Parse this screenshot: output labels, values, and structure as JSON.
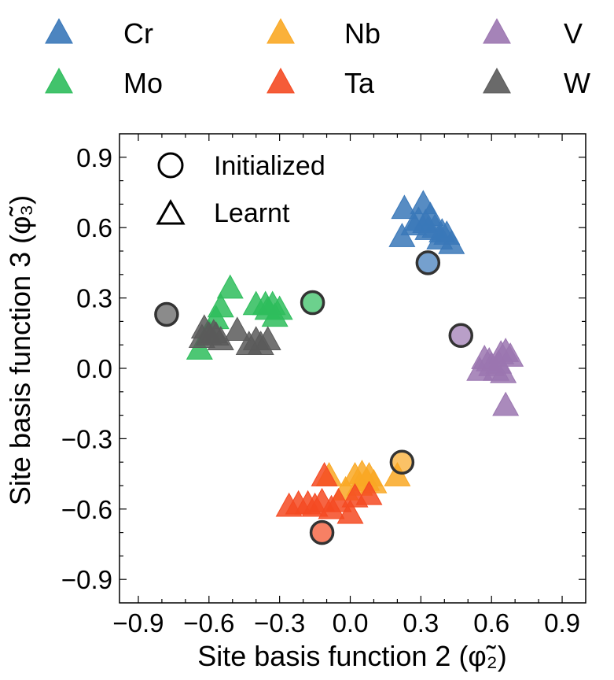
{
  "chart_data": {
    "type": "scatter",
    "xlabel": "Site basis function 2",
    "xlabel_symbol": "(φ̃₂)",
    "ylabel": "Site basis function 3",
    "ylabel_symbol": "(φ̃₃)",
    "xlim": [
      -0.98,
      1.0
    ],
    "ylim": [
      -1.0,
      1.0
    ],
    "xticks": [
      -0.9,
      -0.6,
      -0.3,
      0.0,
      0.3,
      0.6,
      0.9
    ],
    "xtick_labels": [
      "−0.9",
      "−0.6",
      "−0.3",
      "0.0",
      "0.3",
      "0.6",
      "0.9"
    ],
    "yticks": [
      -0.9,
      -0.6,
      -0.3,
      0.0,
      0.3,
      0.6,
      0.9
    ],
    "ytick_labels": [
      "−0.9",
      "−0.6",
      "−0.3",
      "0.0",
      "0.3",
      "0.6",
      "0.9"
    ],
    "marker_legend": [
      {
        "label": "Initialized",
        "marker": "circle"
      },
      {
        "label": "Learnt",
        "marker": "triangle"
      }
    ],
    "series": [
      {
        "name": "Cr",
        "color": "#3a78b9",
        "initialized": [
          0.33,
          0.45
        ],
        "learnt": [
          [
            0.23,
            0.68
          ],
          [
            0.31,
            0.7
          ],
          [
            0.29,
            0.63
          ],
          [
            0.34,
            0.65
          ],
          [
            0.36,
            0.6
          ],
          [
            0.27,
            0.61
          ],
          [
            0.22,
            0.56
          ],
          [
            0.33,
            0.59
          ],
          [
            0.39,
            0.58
          ],
          [
            0.41,
            0.57
          ],
          [
            0.38,
            0.55
          ],
          [
            0.43,
            0.53
          ],
          [
            0.32,
            0.62
          ]
        ]
      },
      {
        "name": "Mo",
        "color": "#2ebd5c",
        "initialized": [
          -0.16,
          0.28
        ],
        "learnt": [
          [
            -0.51,
            0.34
          ],
          [
            -0.4,
            0.27
          ],
          [
            -0.33,
            0.27
          ],
          [
            -0.35,
            0.25
          ],
          [
            -0.3,
            0.25
          ],
          [
            -0.55,
            0.26
          ],
          [
            -0.57,
            0.21
          ],
          [
            -0.32,
            0.22
          ],
          [
            -0.64,
            0.08
          ],
          [
            -0.6,
            0.15
          ],
          [
            -0.36,
            0.27
          ]
        ]
      },
      {
        "name": "Nb",
        "color": "#f9a825",
        "initialized": [
          0.22,
          -0.4
        ],
        "learnt": [
          [
            -0.09,
            -0.46
          ],
          [
            0.02,
            -0.46
          ],
          [
            0.05,
            -0.45
          ],
          [
            0.08,
            -0.46
          ],
          [
            0.2,
            -0.46
          ],
          [
            0.04,
            -0.5
          ],
          [
            0.07,
            -0.48
          ],
          [
            0.1,
            -0.49
          ],
          [
            -0.02,
            -0.52
          ]
        ]
      },
      {
        "name": "Ta",
        "color": "#f44a22",
        "initialized": [
          -0.12,
          -0.7
        ],
        "learnt": [
          [
            -0.11,
            -0.46
          ],
          [
            -0.26,
            -0.59
          ],
          [
            -0.22,
            -0.58
          ],
          [
            -0.18,
            -0.58
          ],
          [
            -0.15,
            -0.59
          ],
          [
            -0.12,
            -0.57
          ],
          [
            -0.05,
            -0.57
          ],
          [
            0.02,
            -0.55
          ],
          [
            0.08,
            -0.54
          ],
          [
            0.0,
            -0.62
          ],
          [
            -0.08,
            -0.6
          ]
        ]
      },
      {
        "name": "V",
        "color": "#9b76b0",
        "initialized": [
          0.47,
          0.14
        ],
        "learnt": [
          [
            0.57,
            0.04
          ],
          [
            0.6,
            0.01
          ],
          [
            0.63,
            0.02
          ],
          [
            0.66,
            0.07
          ],
          [
            0.68,
            0.05
          ],
          [
            0.55,
            -0.01
          ],
          [
            0.62,
            -0.01
          ],
          [
            0.65,
            -0.02
          ],
          [
            0.66,
            -0.16
          ],
          [
            0.59,
            0.03
          ],
          [
            0.64,
            0.06
          ]
        ]
      },
      {
        "name": "W",
        "color": "#5a5a5a",
        "initialized": [
          -0.78,
          0.23
        ],
        "learnt": [
          [
            -0.62,
            0.17
          ],
          [
            -0.6,
            0.14
          ],
          [
            -0.57,
            0.14
          ],
          [
            -0.55,
            0.12
          ],
          [
            -0.63,
            0.13
          ],
          [
            -0.48,
            0.16
          ],
          [
            -0.4,
            0.12
          ],
          [
            -0.38,
            0.1
          ],
          [
            -0.35,
            0.12
          ],
          [
            -0.43,
            0.1
          ],
          [
            -0.58,
            0.15
          ]
        ]
      }
    ]
  }
}
